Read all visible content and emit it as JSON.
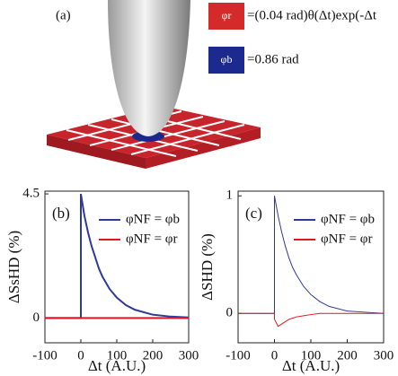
{
  "panel_a": {
    "label": "(a)",
    "red_key": "φr",
    "red_text": "=(0.04 rad)θ(Δt)exp(-Δt",
    "blue_key": "φb",
    "blue_text": "=0.86 rad"
  },
  "chart_data": [
    {
      "type": "line",
      "panel": "(b)",
      "ylabel": "ΔSsHD (%)",
      "xlabel": "Δt (A.U.)",
      "xlim": [
        -100,
        300
      ],
      "xticks": [
        -100,
        0,
        100,
        200,
        300
      ],
      "ylim": [
        -0.9,
        4.6
      ],
      "yticks": [
        0,
        4.5
      ],
      "legend": "upper right",
      "x": [
        -100,
        0,
        0,
        10,
        20,
        30,
        40,
        50,
        60,
        80,
        100,
        125,
        150,
        200,
        250,
        300
      ],
      "series": [
        {
          "name": "φNF = φb",
          "color": "#2e3a9a",
          "values": [
            0,
            0,
            4.5,
            3.7,
            3.1,
            2.6,
            2.2,
            1.8,
            1.5,
            1.05,
            0.74,
            0.47,
            0.3,
            0.12,
            0.05,
            0.02
          ]
        },
        {
          "name": "φNF = φr",
          "color": "#e8141c",
          "values": [
            0,
            0,
            0,
            0,
            0,
            0,
            0,
            0,
            0,
            0,
            0,
            0,
            0,
            0,
            0,
            0
          ]
        }
      ]
    },
    {
      "type": "line",
      "panel": "(c)",
      "ylabel": "ΔSHD (%)",
      "xlabel": "Δt (A.U.)",
      "xlim": [
        -100,
        300
      ],
      "xticks": [
        -100,
        0,
        100,
        200,
        300
      ],
      "ylim": [
        -0.25,
        1.04
      ],
      "yticks": [
        0,
        1
      ],
      "legend": "upper right",
      "x": [
        -100,
        0,
        0,
        10,
        20,
        30,
        40,
        50,
        60,
        80,
        100,
        125,
        150,
        200,
        250,
        300
      ],
      "series": [
        {
          "name": "φNF = φb",
          "color": "#2e3a9a",
          "values": [
            0,
            0,
            1,
            0.83,
            0.69,
            0.57,
            0.47,
            0.39,
            0.33,
            0.23,
            0.16,
            0.1,
            0.06,
            0.02,
            0.01,
            0
          ]
        },
        {
          "name": "φNF = φr",
          "color": "#e8141c",
          "values": [
            0,
            0,
            -0.05,
            -0.11,
            -0.09,
            -0.07,
            -0.05,
            -0.04,
            -0.03,
            -0.02,
            -0.01,
            0,
            0,
            0,
            0,
            0
          ]
        }
      ]
    }
  ]
}
